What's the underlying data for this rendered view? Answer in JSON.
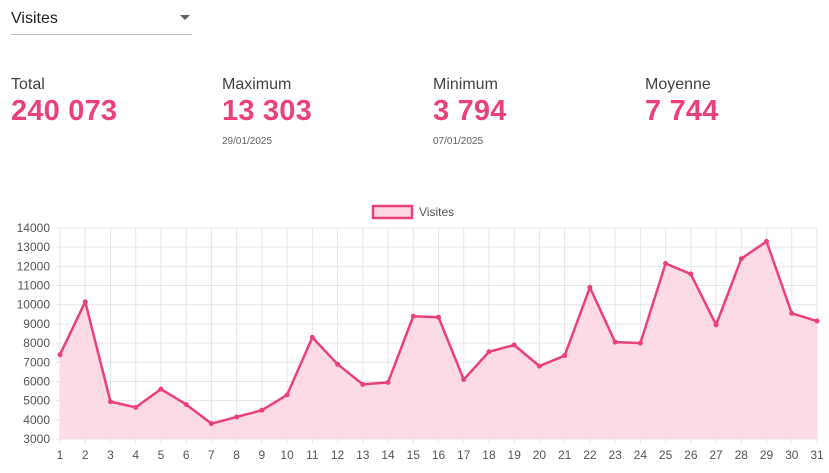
{
  "selector": {
    "value": "Visites"
  },
  "stats": {
    "total": {
      "label": "Total",
      "value": "240 073"
    },
    "max": {
      "label": "Maximum",
      "value": "13 303",
      "date": "29/01/2025"
    },
    "min": {
      "label": "Minimum",
      "value": "3 794",
      "date": "07/01/2025"
    },
    "avg": {
      "label": "Moyenne",
      "value": "7 744"
    }
  },
  "colors": {
    "accent": "#ec407a",
    "fill": "#fcd6e3",
    "grid": "#e6e6e6"
  },
  "chart_data": {
    "type": "area",
    "legend": "top",
    "grid": true,
    "series": [
      {
        "name": "Visites",
        "values": [
          7400,
          10150,
          4950,
          4650,
          5600,
          4800,
          3800,
          4150,
          4500,
          5300,
          8300,
          6900,
          5850,
          5950,
          9400,
          9350,
          6100,
          7550,
          7900,
          6800,
          7350,
          10900,
          8050,
          8000,
          12150,
          11600,
          8950,
          12400,
          13300,
          9550,
          9150
        ]
      }
    ],
    "x": [
      "1",
      "2",
      "3",
      "4",
      "5",
      "6",
      "7",
      "8",
      "9",
      "10",
      "11",
      "12",
      "13",
      "14",
      "15",
      "16",
      "17",
      "18",
      "19",
      "20",
      "21",
      "22",
      "23",
      "24",
      "25",
      "26",
      "27",
      "28",
      "29",
      "30",
      "31"
    ],
    "ylim": [
      3000,
      14000
    ],
    "yticks": [
      "14000",
      "13000",
      "12000",
      "11000",
      "10000",
      "9000",
      "8000",
      "7000",
      "6000",
      "5000",
      "4000",
      "3000"
    ]
  }
}
